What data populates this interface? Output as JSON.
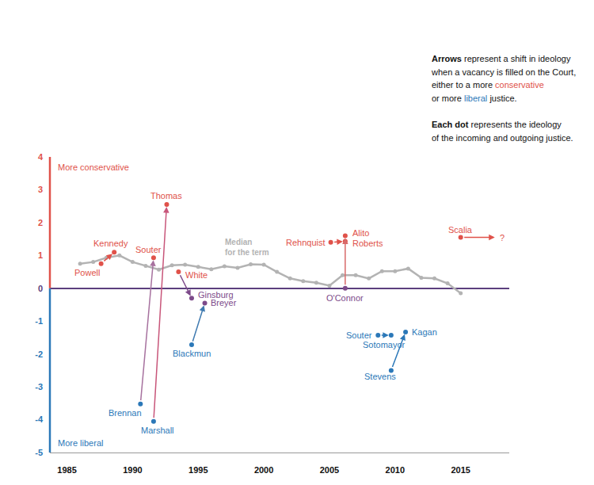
{
  "chart_data": {
    "type": "line",
    "xlim": [
      1983.7,
      2018.7
    ],
    "xticks": [
      1985,
      1990,
      1995,
      2000,
      2005,
      2010,
      2015
    ],
    "ylim": [
      -5,
      4
    ],
    "yticks": [
      -5,
      -4,
      -3,
      -2,
      -1,
      0,
      1,
      2,
      3,
      4
    ],
    "grid": false,
    "ylabel_top": {
      "text": "More conservative",
      "color": "#e0524a"
    },
    "ylabel_bottom": {
      "text": "More liberal",
      "color": "#2b78b8"
    },
    "series": [
      {
        "label": [
          "Median",
          "for the term"
        ],
        "color": "#b3b3b3",
        "marker": "circle",
        "x": [
          1986,
          1987,
          1988,
          1989,
          1990,
          1991,
          1992,
          1993,
          1994,
          1995,
          1996,
          1997,
          1998,
          1999,
          2000,
          2001,
          2002,
          2003,
          2004,
          2005,
          2006,
          2007,
          2008,
          2009,
          2010,
          2011,
          2012,
          2013,
          2014,
          2015
        ],
        "values": [
          0.75,
          0.8,
          0.93,
          1.0,
          0.8,
          0.68,
          0.57,
          0.7,
          0.72,
          0.65,
          0.58,
          0.67,
          0.62,
          0.73,
          0.72,
          0.5,
          0.3,
          0.22,
          0.17,
          0.08,
          0.4,
          0.4,
          0.3,
          0.52,
          0.52,
          0.6,
          0.32,
          0.3,
          0.15,
          -0.15
        ]
      }
    ],
    "transitions": [
      {
        "color": "#e0524a",
        "outgoing": {
          "name": "Powell",
          "x": 1987.6,
          "value": 0.75,
          "color": "#e0524a"
        },
        "incoming": {
          "name": "Kennedy",
          "x": 1988.6,
          "value": 1.1,
          "color": "#e0524a"
        }
      },
      {
        "color": "#a7729f",
        "outgoing": {
          "name": "Brennan",
          "x": 1990.6,
          "value": -3.52,
          "color": "#2b78b8"
        },
        "incoming": {
          "name": "Souter",
          "x": 1991.6,
          "value": 0.93,
          "color": "#e0524a"
        }
      },
      {
        "color": "#c8567a",
        "outgoing": {
          "name": "Marshall",
          "x": 1991.6,
          "value": -4.05,
          "color": "#2b78b8"
        },
        "incoming": {
          "name": "Thomas",
          "x": 1992.6,
          "value": 2.55,
          "color": "#e0524a"
        }
      },
      {
        "color": "#7d4a8a",
        "outgoing": {
          "name": "White",
          "x": 1993.5,
          "value": 0.5,
          "color": "#e0524a"
        },
        "incoming": {
          "name": "Ginsburg",
          "x": 1994.5,
          "value": -0.3,
          "color": "#7d4a8a"
        }
      },
      {
        "color": "#3f7ab0",
        "outgoing": {
          "name": "Blackmun",
          "x": 1994.5,
          "value": -1.72,
          "color": "#2b78b8"
        },
        "incoming": {
          "name": "Breyer",
          "x": 1995.5,
          "value": -0.45,
          "color": "#7d4a8a"
        }
      },
      {
        "color": "#e0524a",
        "outgoing": {
          "name": "Rehnquist",
          "x": 2005.1,
          "value": 1.4,
          "color": "#e0524a"
        },
        "incoming": {
          "name": "Roberts",
          "x": 2006.2,
          "value": 1.43,
          "color": "#e0524a"
        }
      },
      {
        "color": "#d86a6a",
        "outgoing": {
          "name": "O'Connor",
          "x": 2006.2,
          "value": 0,
          "color": "#7d4a8a"
        },
        "incoming": {
          "name": "Alito",
          "x": 2006.2,
          "value": 1.6,
          "color": "#e0524a"
        }
      },
      {
        "color": "#2b78b8",
        "outgoing": {
          "name": "Souter",
          "x": 2008.7,
          "value": -1.43,
          "color": "#2b78b8"
        },
        "incoming": {
          "name": "Sotomayor",
          "x": 2009.7,
          "value": -1.43,
          "color": "#2b78b8"
        }
      },
      {
        "color": "#2b78b8",
        "outgoing": {
          "name": "Stevens",
          "x": 2009.7,
          "value": -2.5,
          "color": "#2b78b8"
        },
        "incoming": {
          "name": "Kagan",
          "x": 2010.8,
          "value": -1.33,
          "color": "#2b78b8"
        }
      },
      {
        "color": "#e0524a",
        "outgoing": {
          "name": "Scalia",
          "x": 2015,
          "value": 1.55,
          "color": "#e0524a"
        },
        "incoming": {
          "name": "?",
          "x": 2017.6,
          "value": 1.55,
          "color": "#e0524a",
          "marker": "none"
        }
      }
    ],
    "notes": [
      [
        [
          {
            "text": "Arrows"
          },
          {
            "text": " represent a shift in ideology"
          }
        ],
        [
          {
            "text": "when a vacancy is filled on the Court,"
          }
        ],
        [
          {
            "text": "either to a more "
          },
          {
            "text": "conservative",
            "color": "#e0524a"
          }
        ],
        [
          {
            "text": "or more "
          },
          {
            "text": "liberal",
            "color": "#2b78b8"
          },
          {
            "text": " justice."
          }
        ]
      ],
      [
        [
          {
            "text": "Each dot"
          },
          {
            "text": " represents the ideology"
          }
        ],
        [
          {
            "text": "of the incoming and outgoing justice."
          }
        ]
      ]
    ]
  }
}
